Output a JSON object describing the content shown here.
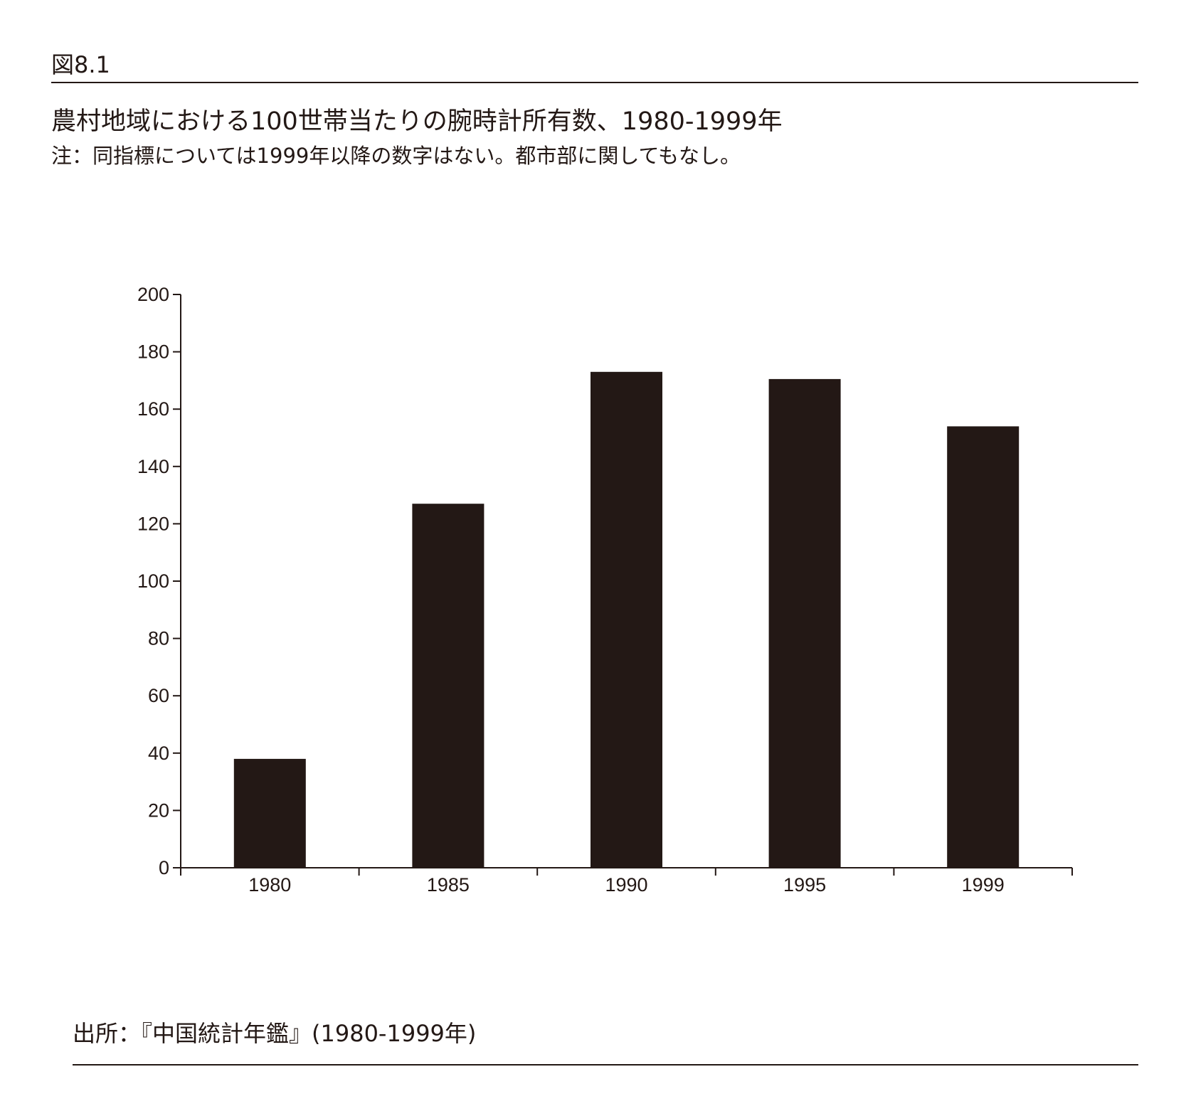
{
  "figure_label": "図8.1",
  "note": "注：同指標については1999年以降の数字はない。都市部に関してもなし。",
  "source": "出所：『中国統計年鑑』(1980-1999年)",
  "colors": {
    "bar": "#231815",
    "axis": "#231815"
  },
  "chart_data": {
    "type": "bar",
    "title": "農村地域における100世帯当たりの腕時計所有数、1980-1999年",
    "categories": [
      "1980",
      "1985",
      "1990",
      "1995",
      "1999"
    ],
    "values": [
      38,
      127,
      173,
      170.5,
      154
    ],
    "ylim": [
      0,
      200
    ],
    "yticks": [
      0,
      20,
      40,
      60,
      80,
      100,
      120,
      140,
      160,
      180,
      200
    ],
    "xlabel": "",
    "ylabel": "",
    "grid": false,
    "legend": "none"
  }
}
